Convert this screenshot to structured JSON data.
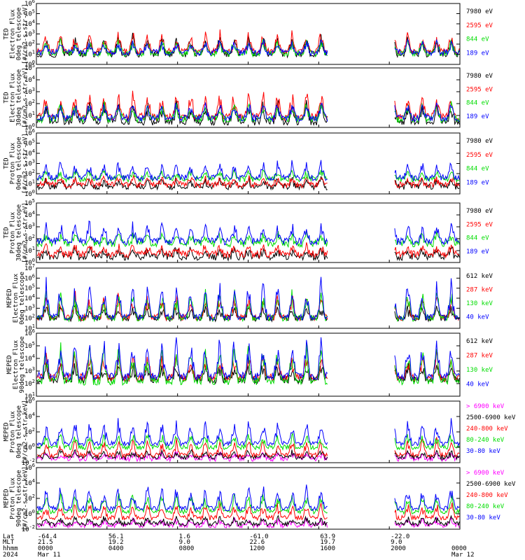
{
  "chart_data": [
    {
      "type": "line",
      "ylabel": [
        "TED",
        "Electron Flux",
        "0deg telescope",
        "[#/cm2-s-str-eV]"
      ],
      "ylim": [
        1,
        1000000
      ],
      "y_scale": "log",
      "y_ticks": [
        {
          "base": "10",
          "exp": "0"
        },
        {
          "base": "10",
          "exp": "1"
        },
        {
          "base": "10",
          "exp": "2"
        },
        {
          "base": "10",
          "exp": "3"
        },
        {
          "base": "10",
          "exp": "4"
        },
        {
          "base": "10",
          "exp": "5"
        },
        {
          "base": "10",
          "exp": "6"
        }
      ],
      "series": [
        {
          "name": "7980 eV",
          "color": "#000000",
          "typical": 10,
          "spikes": 1200
        },
        {
          "name": "2595 eV",
          "color": "#ff0000",
          "typical": 20,
          "spikes": 3000
        },
        {
          "name": "844 eV",
          "color": "#00dd00",
          "typical": 12,
          "spikes": 400
        },
        {
          "name": "189 eV",
          "color": "#0000ff",
          "typical": 15,
          "spikes": 300
        }
      ]
    },
    {
      "type": "line",
      "ylabel": [
        "TED",
        "Electron Flux",
        "30deg telescope",
        "[#/cm2-s-str-eV]"
      ],
      "ylim": [
        1,
        100000
      ],
      "y_scale": "log",
      "y_ticks": [
        {
          "base": "10",
          "exp": "0"
        },
        {
          "base": "10",
          "exp": "1"
        },
        {
          "base": "10",
          "exp": "2"
        },
        {
          "base": "10",
          "exp": "3"
        },
        {
          "base": "10",
          "exp": "4"
        },
        {
          "base": "10",
          "exp": "5"
        }
      ],
      "series": [
        {
          "name": "7980 eV",
          "color": "#000000",
          "typical": 3,
          "spikes": 200
        },
        {
          "name": "2595 eV",
          "color": "#ff0000",
          "typical": 8,
          "spikes": 2000
        },
        {
          "name": "844 eV",
          "color": "#00dd00",
          "typical": 5,
          "spikes": 150
        },
        {
          "name": "189 eV",
          "color": "#0000ff",
          "typical": 6,
          "spikes": 200
        }
      ]
    },
    {
      "type": "line",
      "ylabel": [
        "TED",
        "Proton Flux",
        "0deg telescope",
        "[#/cm2-s-str-eV]"
      ],
      "ylim": [
        1,
        1000000
      ],
      "y_scale": "log",
      "y_ticks": [
        {
          "base": "10",
          "exp": "0"
        },
        {
          "base": "10",
          "exp": "1"
        },
        {
          "base": "10",
          "exp": "2"
        },
        {
          "base": "10",
          "exp": "3"
        },
        {
          "base": "10",
          "exp": "4"
        },
        {
          "base": "10",
          "exp": "5"
        },
        {
          "base": "10",
          "exp": "6"
        }
      ],
      "series": [
        {
          "name": "7980 eV",
          "color": "#000000",
          "typical": 5,
          "spikes": 40
        },
        {
          "name": "2595 eV",
          "color": "#ff0000",
          "typical": 8,
          "spikes": 60
        },
        {
          "name": "844 eV",
          "color": "#00dd00",
          "typical": 30,
          "spikes": 300
        },
        {
          "name": "189 eV",
          "color": "#0000ff",
          "typical": 40,
          "spikes": 2000
        }
      ]
    },
    {
      "type": "line",
      "ylabel": [
        "TED",
        "Proton Flux",
        "30deg telescope",
        "[#/cm2-s-str-eV]"
      ],
      "ylim": [
        1,
        100000
      ],
      "y_scale": "log",
      "y_ticks": [
        {
          "base": "10",
          "exp": "0"
        },
        {
          "base": "10",
          "exp": "1"
        },
        {
          "base": "10",
          "exp": "2"
        },
        {
          "base": "10",
          "exp": "3"
        },
        {
          "base": "10",
          "exp": "4"
        },
        {
          "base": "10",
          "exp": "5"
        }
      ],
      "series": [
        {
          "name": "7980 eV",
          "color": "#000000",
          "typical": 3,
          "spikes": 20
        },
        {
          "name": "2595 eV",
          "color": "#ff0000",
          "typical": 5,
          "spikes": 40
        },
        {
          "name": "844 eV",
          "color": "#00dd00",
          "typical": 40,
          "spikes": 400
        },
        {
          "name": "189 eV",
          "color": "#0000ff",
          "typical": 60,
          "spikes": 3000
        }
      ]
    },
    {
      "type": "line",
      "ylabel": [
        "MEPED",
        "Electron Flux",
        "0deg telescope"
      ],
      "ylim": [
        10,
        10000000
      ],
      "y_scale": "log",
      "y_ticks": [
        {
          "base": "10",
          "exp": "1"
        },
        {
          "base": "10",
          "exp": "2"
        },
        {
          "base": "10",
          "exp": "3"
        },
        {
          "base": "10",
          "exp": "4"
        },
        {
          "base": "10",
          "exp": "5"
        },
        {
          "base": "10",
          "exp": "6"
        },
        {
          "base": "10",
          "exp": "7"
        }
      ],
      "series": [
        {
          "name": "612 keV",
          "color": "#000000",
          "typical": 100,
          "spikes": 2000
        },
        {
          "name": "287 keV",
          "color": "#ff0000",
          "typical": 120,
          "spikes": 50000
        },
        {
          "name": "130 keV",
          "color": "#00dd00",
          "typical": 100,
          "spikes": 100000
        },
        {
          "name": "40 keV",
          "color": "#0000ff",
          "typical": 130,
          "spikes": 1000000
        }
      ]
    },
    {
      "type": "line",
      "ylabel": [
        "MEPED",
        "Electron Flux",
        "90deg telescope"
      ],
      "ylim": [
        10,
        1000000
      ],
      "y_scale": "log",
      "y_ticks": [
        {
          "base": "10",
          "exp": "1"
        },
        {
          "base": "10",
          "exp": "2"
        },
        {
          "base": "10",
          "exp": "3"
        },
        {
          "base": "10",
          "exp": "4"
        },
        {
          "base": "10",
          "exp": "5"
        },
        {
          "base": "10",
          "exp": "6"
        }
      ],
      "series": [
        {
          "name": "612 keV",
          "color": "#000000",
          "typical": 200,
          "spikes": 5000
        },
        {
          "name": "287 keV",
          "color": "#ff0000",
          "typical": 300,
          "spikes": 50000
        },
        {
          "name": "130 keV",
          "color": "#00dd00",
          "typical": 150,
          "spikes": 200000
        },
        {
          "name": "40 keV",
          "color": "#0000ff",
          "typical": 400,
          "spikes": 500000
        }
      ]
    },
    {
      "type": "line",
      "ylabel": [
        "MEPED",
        "Proton Flux",
        "0deg telescope",
        "[#/cm2-s-str-keV]"
      ],
      "ylim": [
        0.01,
        1000000
      ],
      "y_scale": "log",
      "y_ticks": [
        {
          "base": "10",
          "exp": "-2"
        },
        {
          "base": "10",
          "exp": "0"
        },
        {
          "base": "10",
          "exp": "2"
        },
        {
          "base": "10",
          "exp": "4"
        },
        {
          "base": "10",
          "exp": "6"
        }
      ],
      "series": [
        {
          "name": "> 6900 keV",
          "color": "#ff00ff",
          "typical": 0.03,
          "spikes": 0.3
        },
        {
          "name": "2500-6900 keV",
          "color": "#000000",
          "typical": 0.05,
          "spikes": 0.5
        },
        {
          "name": "240-800 keV",
          "color": "#ff0000",
          "typical": 0.1,
          "spikes": 20
        },
        {
          "name": "80-240 keV",
          "color": "#00dd00",
          "typical": 1,
          "spikes": 100
        },
        {
          "name": "30-80 keV",
          "color": "#0000ff",
          "typical": 3,
          "spikes": 10000
        }
      ]
    },
    {
      "type": "line",
      "ylabel": [
        "MEPED",
        "Proton Flux",
        "90deg telescope",
        "[#/cm2-s-str-keV]"
      ],
      "ylim": [
        0.01,
        1000000
      ],
      "y_scale": "log",
      "y_ticks": [
        {
          "base": "10",
          "exp": "-2"
        },
        {
          "base": "10",
          "exp": "0"
        },
        {
          "base": "10",
          "exp": "2"
        },
        {
          "base": "10",
          "exp": "4"
        },
        {
          "base": "10",
          "exp": "6"
        }
      ],
      "series": [
        {
          "name": "> 6900 keV",
          "color": "#ff00ff",
          "typical": 0.03,
          "spikes": 0.3
        },
        {
          "name": "2500-6900 keV",
          "color": "#000000",
          "typical": 0.05,
          "spikes": 0.5
        },
        {
          "name": "240-800 keV",
          "color": "#ff0000",
          "typical": 0.3,
          "spikes": 50
        },
        {
          "name": "80-240 keV",
          "color": "#00dd00",
          "typical": 2,
          "spikes": 1000
        },
        {
          "name": "30-80 keV",
          "color": "#0000ff",
          "typical": 5,
          "spikes": 10000
        }
      ]
    }
  ],
  "x_axis": {
    "row_labels": [
      "Lat",
      "MLT",
      "hhmm",
      "2024"
    ],
    "ticks": [
      {
        "time": "0000",
        "lat": "-64.4",
        "mlt": "21.5",
        "date": "Mar 11"
      },
      {
        "time": "0400",
        "lat": "56.1",
        "mlt": "19.2",
        "date": ""
      },
      {
        "time": "0800",
        "lat": "1.6",
        "mlt": "9.0",
        "date": ""
      },
      {
        "time": "1200",
        "lat": "-61.0",
        "mlt": "22.6",
        "date": ""
      },
      {
        "time": "1600",
        "lat": "63.9",
        "mlt": "19.7",
        "date": ""
      },
      {
        "time": "2000",
        "lat": "-22.0",
        "mlt": "9.0",
        "date": ""
      },
      {
        "time": "0000",
        "lat": "",
        "mlt": "",
        "date": "Mar 12"
      }
    ],
    "data_gap_hours": [
      16.5,
      20.3
    ]
  }
}
